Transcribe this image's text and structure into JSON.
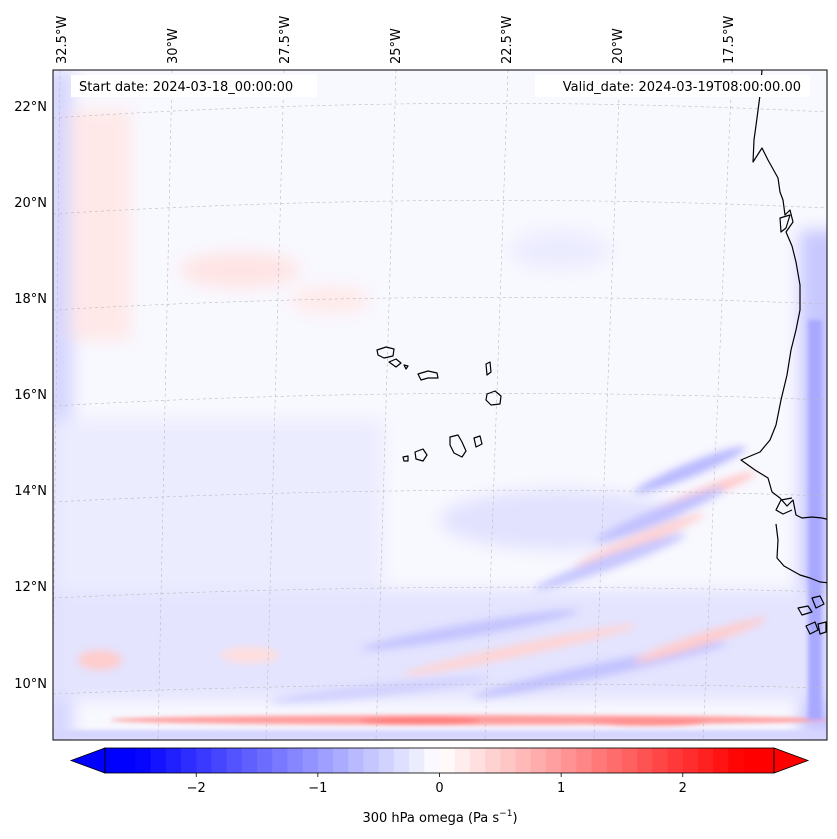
{
  "header": {
    "start_date": "Start date: 2024-03-18_00:00:00",
    "valid_date": "Valid_date: 2024-03-19T08:00:00.00"
  },
  "axes": {
    "lon_labels": [
      "32.5°W",
      "30°W",
      "27.5°W",
      "25°W",
      "22.5°W",
      "20°W",
      "17.5°W"
    ],
    "lat_labels": [
      "22°N",
      "20°N",
      "18°N",
      "16°N",
      "14°N",
      "12°N",
      "10°N"
    ]
  },
  "colorbar": {
    "label": "300 hPa omega (Pa s",
    "label_sup": "−1",
    "label_close": ")",
    "tick_labels": [
      "−2",
      "−1",
      "0",
      "1",
      "2"
    ],
    "vmin": -2.75,
    "vmax": 2.75,
    "negative_color": "#0000ff",
    "neutral_color": "#ffffff",
    "positive_color": "#ff0000"
  },
  "colors": {
    "coast": "#000000",
    "grid": "#bbbbbb",
    "background_tint": "#f8f8ff"
  }
}
